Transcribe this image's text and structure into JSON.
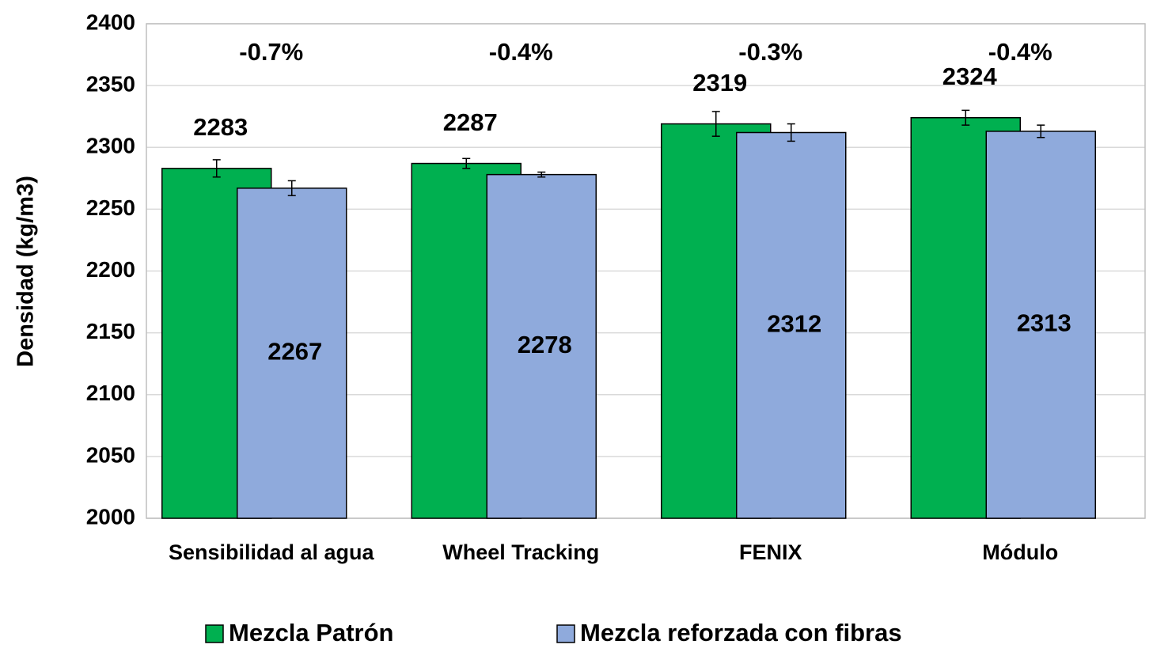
{
  "chart_data": {
    "type": "bar",
    "ylabel": "Densidad (kg/m3)",
    "categories": [
      "Sensibilidad al agua",
      "Wheel Tracking",
      "FENIX",
      "Módulo"
    ],
    "series": [
      {
        "name": "Mezcla Patrón",
        "color": "#00b050",
        "values": [
          2283,
          2287,
          2319,
          2324
        ],
        "errors": [
          7,
          4,
          10,
          6
        ]
      },
      {
        "name": "Mezcla reforzada con fibras",
        "color": "#8faadc",
        "values": [
          2267,
          2278,
          2312,
          2313
        ],
        "errors": [
          6,
          2,
          7,
          5
        ]
      }
    ],
    "annotations": [
      "-0.7%",
      "-0.4%",
      "-0.3%",
      "-0.4%"
    ],
    "ylim": [
      2000,
      2400
    ],
    "yticks": [
      2000,
      2050,
      2100,
      2150,
      2200,
      2250,
      2300,
      2350,
      2400
    ],
    "grid": true
  }
}
